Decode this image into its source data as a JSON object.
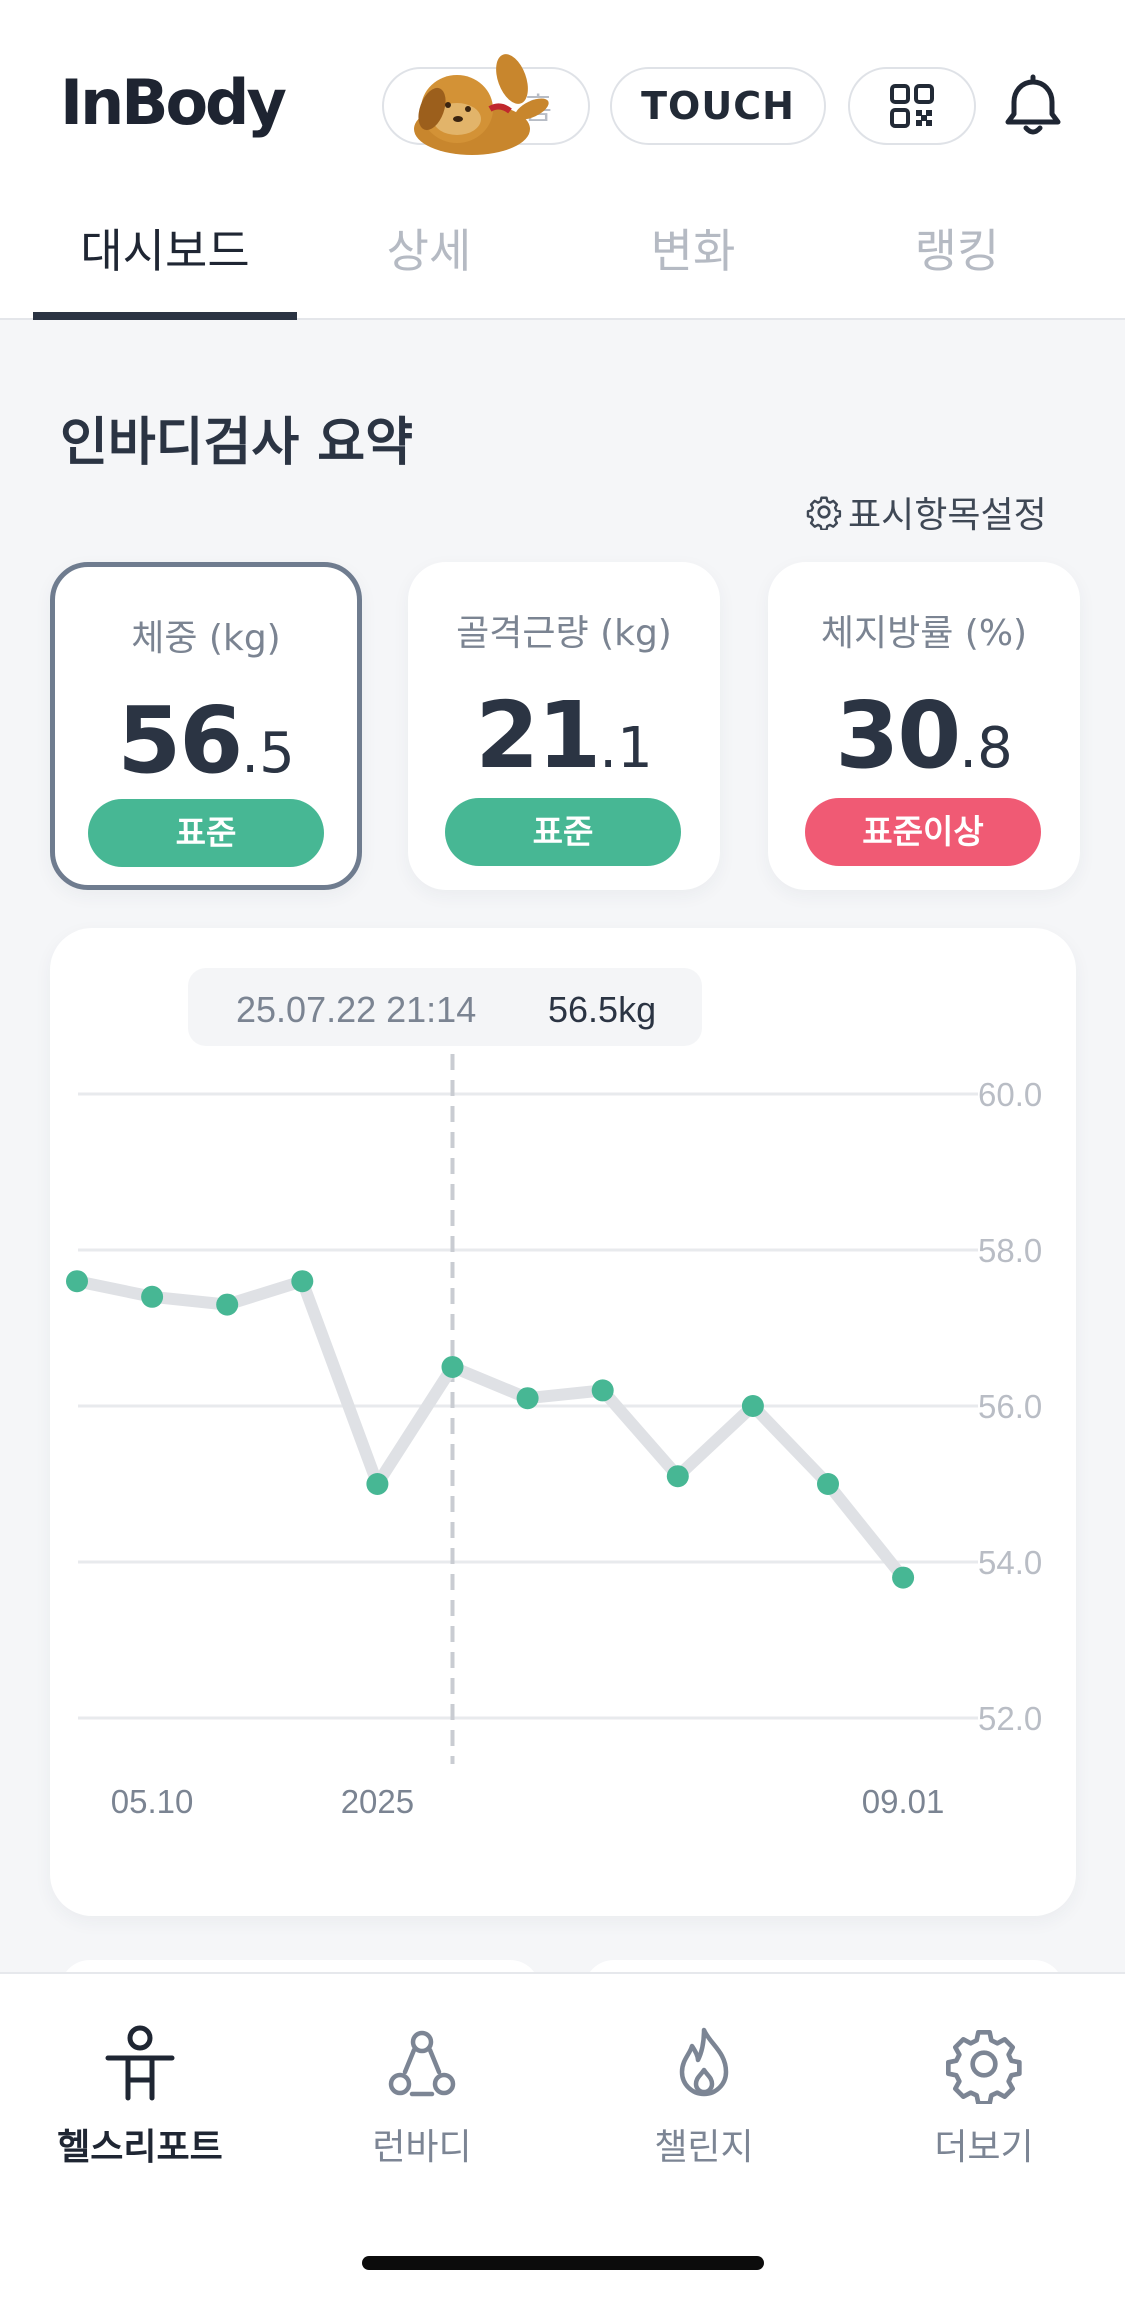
{
  "header": {
    "logo": "InBody",
    "mascot_pill_label": "홈",
    "touch_label": "TOUCH",
    "qr_icon": "qr-code-icon",
    "bell_icon": "bell-icon"
  },
  "tabs": [
    {
      "label": "대시보드",
      "active": true
    },
    {
      "label": "상세",
      "active": false
    },
    {
      "label": "변화",
      "active": false
    },
    {
      "label": "랭킹",
      "active": false
    }
  ],
  "summary": {
    "title": "인바디검사 요약",
    "settings_label": "표시항목설정",
    "cards": [
      {
        "label": "체중 (kg)",
        "int": "56",
        "dec": ".5",
        "badge": "표준",
        "status": "green",
        "selected": true
      },
      {
        "label": "골격근량 (kg)",
        "int": "21",
        "dec": ".1",
        "badge": "표준",
        "status": "green",
        "selected": false
      },
      {
        "label": "체지방률 (%)",
        "int": "30",
        "dec": ".8",
        "badge": "표준이상",
        "status": "red",
        "selected": false
      }
    ]
  },
  "chart_data": {
    "type": "line",
    "tooltip_date": "25.07.22 21:14",
    "tooltip_value": "56.5kg",
    "y_ticks": [
      "60.0",
      "58.0",
      "56.0",
      "54.0",
      "52.0"
    ],
    "ylim": [
      52,
      60
    ],
    "x_tick_labels": [
      {
        "label": "05.10",
        "index": 1
      },
      {
        "label": "2025",
        "index": 4
      },
      {
        "label": "09.01",
        "index": 11
      }
    ],
    "values": [
      57.6,
      57.4,
      57.3,
      57.6,
      55.0,
      56.5,
      56.1,
      56.2,
      55.1,
      56.0,
      55.0,
      53.8
    ],
    "selected_index": 5,
    "line_color": "#dfe1e5",
    "point_color": "#47b794"
  },
  "nav": [
    {
      "label": "헬스리포트",
      "icon": "person-icon",
      "active": true
    },
    {
      "label": "런바디",
      "icon": "runbody-icon",
      "active": false
    },
    {
      "label": "챌린지",
      "icon": "flame-icon",
      "active": false
    },
    {
      "label": "더보기",
      "icon": "gear-icon",
      "active": false
    }
  ]
}
